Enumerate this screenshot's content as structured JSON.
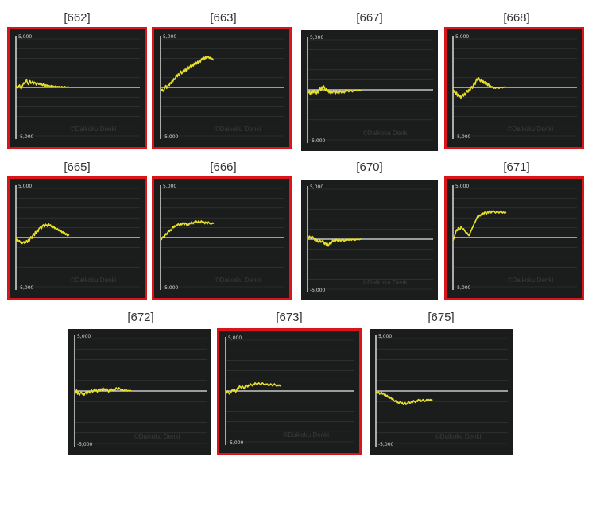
{
  "colors": {
    "highlight": "#d9141b",
    "panel": "#1b1c1c",
    "series": "#e8e12a",
    "baseline": "#e8e8e8",
    "grid": "#3a3b3b"
  },
  "y_top_label": "5,000",
  "y_bottom_label": "-5,000",
  "watermark": "©Daikoku Denki",
  "chart_data": [
    {
      "type": "line",
      "title": "[662]",
      "highlighted": true,
      "ylim": [
        -5000,
        5000
      ],
      "x": [
        0,
        5,
        10,
        15,
        20,
        25,
        30,
        35,
        40,
        45,
        50,
        55,
        60,
        65,
        70,
        75,
        80,
        85,
        90,
        95,
        100,
        105,
        110,
        115,
        120,
        125,
        130,
        135,
        140,
        145,
        150,
        155,
        160,
        165,
        170,
        175,
        180,
        185,
        190,
        195,
        200,
        205,
        210,
        215,
        220,
        225,
        230,
        235,
        240,
        245,
        250,
        255,
        260,
        265,
        270,
        275,
        280,
        285,
        290,
        295,
        300
      ],
      "values": [
        50,
        150,
        -50,
        100,
        250,
        0,
        -150,
        100,
        300,
        500,
        350,
        600,
        800,
        450,
        300,
        550,
        700,
        400,
        500,
        650,
        350,
        550,
        450,
        250,
        500,
        400,
        300,
        450,
        250,
        350,
        200,
        350,
        150,
        300,
        150,
        250,
        100,
        200,
        150,
        100,
        200,
        100,
        150,
        50,
        100,
        150,
        50,
        100,
        50,
        100,
        0,
        50,
        100,
        0,
        50,
        100,
        50,
        0,
        50,
        0,
        50
      ]
    },
    {
      "type": "line",
      "title": "[663]",
      "highlighted": true,
      "ylim": [
        -5000,
        5000
      ],
      "x": [
        0,
        5,
        10,
        15,
        20,
        25,
        30,
        35,
        40,
        45,
        50,
        55,
        60,
        65,
        70,
        75,
        80,
        85,
        90,
        95,
        100,
        105,
        110,
        115,
        120,
        125,
        130,
        135,
        140,
        145,
        150,
        155,
        160,
        165,
        170,
        175,
        180,
        185,
        190,
        195,
        200,
        205,
        210,
        215,
        220,
        225,
        230,
        235,
        240,
        245,
        250,
        255,
        260,
        265,
        270,
        275,
        280,
        285,
        290,
        295,
        300
      ],
      "values": [
        -100,
        -300,
        -200,
        -400,
        -250,
        0,
        200,
        -100,
        100,
        300,
        200,
        500,
        400,
        700,
        600,
        900,
        800,
        1000,
        1300,
        1100,
        1400,
        1200,
        1500,
        1700,
        1400,
        1600,
        1800,
        1600,
        1900,
        1700,
        2000,
        2200,
        1900,
        2100,
        2300,
        2100,
        2400,
        2200,
        2500,
        2300,
        2600,
        2400,
        2700,
        2500,
        2800,
        2600,
        2900,
        3000,
        2800,
        3100,
        2900,
        3200,
        3000,
        3100,
        3200,
        3000,
        3100,
        2900,
        3000,
        2900,
        2800
      ]
    },
    {
      "type": "line",
      "title": "[667]",
      "highlighted": false,
      "ylim": [
        -5000,
        5000
      ],
      "x": [
        0,
        5,
        10,
        15,
        20,
        25,
        30,
        35,
        40,
        45,
        50,
        55,
        60,
        65,
        70,
        75,
        80,
        85,
        90,
        95,
        100,
        105,
        110,
        115,
        120,
        125,
        130,
        135,
        140,
        145,
        150,
        155,
        160,
        165,
        170,
        175,
        180,
        185,
        190,
        195,
        200,
        205,
        210,
        215,
        220,
        225,
        230,
        235,
        240,
        245,
        250,
        255,
        260,
        265,
        270,
        275,
        280,
        285,
        290,
        295,
        300
      ],
      "values": [
        0,
        -300,
        -100,
        -500,
        -200,
        -400,
        -100,
        -300,
        0,
        -200,
        -400,
        -100,
        -300,
        100,
        200,
        -100,
        300,
        100,
        400,
        200,
        -100,
        100,
        -200,
        0,
        -300,
        -100,
        -400,
        -200,
        -300,
        -100,
        -200,
        -400,
        -100,
        -300,
        -200,
        -400,
        -100,
        -200,
        -300,
        -100,
        -200,
        -300,
        -100,
        -200,
        0,
        -100,
        -200,
        -100,
        0,
        -100,
        -200,
        -100,
        0,
        -100,
        0,
        -50,
        0,
        -100,
        0,
        -50,
        0
      ]
    },
    {
      "type": "line",
      "title": "[668]",
      "highlighted": true,
      "ylim": [
        -5000,
        5000
      ],
      "x": [
        0,
        5,
        10,
        15,
        20,
        25,
        30,
        35,
        40,
        45,
        50,
        55,
        60,
        65,
        70,
        75,
        80,
        85,
        90,
        95,
        100,
        105,
        110,
        115,
        120,
        125,
        130,
        135,
        140,
        145,
        150,
        155,
        160,
        165,
        170,
        175,
        180,
        185,
        190,
        195,
        200,
        205,
        210,
        215,
        220,
        225,
        230,
        235,
        240,
        245,
        250,
        255,
        260,
        265,
        270,
        275,
        280,
        285,
        290,
        295,
        300
      ],
      "values": [
        -200,
        -500,
        -300,
        -700,
        -500,
        -900,
        -700,
        -1000,
        -800,
        -1100,
        -900,
        -700,
        -900,
        -600,
        -800,
        -500,
        -300,
        -500,
        -200,
        -400,
        -100,
        100,
        -100,
        200,
        500,
        300,
        700,
        900,
        700,
        1000,
        800,
        600,
        800,
        500,
        700,
        400,
        600,
        300,
        500,
        200,
        400,
        100,
        200,
        0,
        100,
        0,
        -100,
        0,
        -100,
        0,
        -50,
        0,
        -100,
        0,
        50,
        0,
        -50,
        0,
        50,
        0,
        0
      ]
    },
    {
      "type": "line",
      "title": "[665]",
      "highlighted": true,
      "ylim": [
        -5000,
        5000
      ],
      "x": [
        0,
        5,
        10,
        15,
        20,
        25,
        30,
        35,
        40,
        45,
        50,
        55,
        60,
        65,
        70,
        75,
        80,
        85,
        90,
        95,
        100,
        105,
        110,
        115,
        120,
        125,
        130,
        135,
        140,
        145,
        150,
        155,
        160,
        165,
        170,
        175,
        180,
        185,
        190,
        195,
        200,
        205,
        210,
        215,
        220,
        225,
        230,
        235,
        240,
        245,
        250,
        255,
        260,
        265,
        270,
        275,
        280,
        285,
        290,
        295,
        300
      ],
      "values": [
        -100,
        -300,
        -200,
        -400,
        -300,
        -500,
        -400,
        -600,
        -500,
        -400,
        -600,
        -500,
        -300,
        -500,
        -200,
        -400,
        -100,
        100,
        -100,
        200,
        400,
        200,
        600,
        400,
        800,
        600,
        900,
        1000,
        1100,
        900,
        1200,
        1300,
        1100,
        1400,
        1200,
        1300,
        1100,
        1400,
        1200,
        1300,
        1100,
        1200,
        1000,
        1100,
        900,
        1000,
        800,
        900,
        700,
        800,
        600,
        700,
        500,
        600,
        400,
        500,
        300,
        400,
        200,
        300,
        200
      ]
    },
    {
      "type": "line",
      "title": "[666]",
      "highlighted": true,
      "ylim": [
        -5000,
        5000
      ],
      "x": [
        0,
        5,
        10,
        15,
        20,
        25,
        30,
        35,
        40,
        45,
        50,
        55,
        60,
        65,
        70,
        75,
        80,
        85,
        90,
        95,
        100,
        105,
        110,
        115,
        120,
        125,
        130,
        135,
        140,
        145,
        150,
        155,
        160,
        165,
        170,
        175,
        180,
        185,
        190,
        195,
        200,
        205,
        210,
        215,
        220,
        225,
        230,
        235,
        240,
        245,
        250,
        255,
        260,
        265,
        270,
        275,
        280,
        285,
        290,
        295,
        300
      ],
      "values": [
        -100,
        -200,
        0,
        100,
        -50,
        200,
        400,
        300,
        500,
        700,
        600,
        800,
        700,
        900,
        1100,
        1000,
        1200,
        1100,
        1300,
        1200,
        1400,
        1300,
        1200,
        1400,
        1300,
        1500,
        1400,
        1300,
        1500,
        1400,
        1200,
        1400,
        1300,
        1500,
        1400,
        1600,
        1500,
        1400,
        1600,
        1500,
        1700,
        1600,
        1500,
        1700,
        1600,
        1500,
        1700,
        1600,
        1500,
        1600,
        1400,
        1600,
        1500,
        1400,
        1600,
        1500,
        1400,
        1500,
        1400,
        1500,
        1400
      ]
    },
    {
      "type": "line",
      "title": "[670]",
      "highlighted": false,
      "ylim": [
        -5000,
        5000
      ],
      "x": [
        0,
        5,
        10,
        15,
        20,
        25,
        30,
        35,
        40,
        45,
        50,
        55,
        60,
        65,
        70,
        75,
        80,
        85,
        90,
        95,
        100,
        105,
        110,
        115,
        120,
        125,
        130,
        135,
        140,
        145,
        150,
        155,
        160,
        165,
        170,
        175,
        180,
        185,
        190,
        195,
        200,
        205,
        210,
        215,
        220,
        225,
        230,
        235,
        240,
        245,
        250,
        255,
        260,
        265,
        270,
        275,
        280,
        285,
        290,
        295,
        300
      ],
      "values": [
        -100,
        100,
        300,
        200,
        100,
        300,
        200,
        100,
        -100,
        100,
        -200,
        -100,
        -300,
        -200,
        -100,
        -300,
        -200,
        -100,
        -300,
        -500,
        -300,
        -600,
        -400,
        -700,
        -500,
        -300,
        -500,
        -300,
        -100,
        -200,
        -100,
        -200,
        0,
        -100,
        -200,
        0,
        -100,
        -200,
        -100,
        0,
        -100,
        -200,
        -100,
        0,
        -100,
        0,
        -100,
        -50,
        0,
        -100,
        0,
        -50,
        0,
        -100,
        -50,
        0,
        -50,
        0,
        -50,
        0,
        0
      ]
    },
    {
      "type": "line",
      "title": "[671]",
      "highlighted": true,
      "ylim": [
        -5000,
        5000
      ],
      "x": [
        0,
        5,
        10,
        15,
        20,
        25,
        30,
        35,
        40,
        45,
        50,
        55,
        60,
        65,
        70,
        75,
        80,
        85,
        90,
        95,
        100,
        105,
        110,
        115,
        120,
        125,
        130,
        135,
        140,
        145,
        150,
        155,
        160,
        165,
        170,
        175,
        180,
        185,
        190,
        195,
        200,
        205,
        210,
        215,
        220,
        225,
        230,
        235,
        240,
        245,
        250,
        255,
        260,
        265,
        270,
        275,
        280,
        285,
        290,
        295,
        300
      ],
      "values": [
        -300,
        -100,
        200,
        500,
        800,
        700,
        1000,
        900,
        800,
        1100,
        1000,
        800,
        900,
        700,
        600,
        400,
        500,
        300,
        200,
        400,
        600,
        800,
        1000,
        1200,
        1400,
        1600,
        1800,
        2000,
        2200,
        2100,
        2300,
        2200,
        2400,
        2300,
        2500,
        2400,
        2600,
        2500,
        2400,
        2600,
        2500,
        2700,
        2600,
        2500,
        2700,
        2600,
        2700,
        2600,
        2500,
        2600,
        2700,
        2600,
        2500,
        2600,
        2700,
        2600,
        2500,
        2600,
        2500,
        2600,
        2500
      ]
    },
    {
      "type": "line",
      "title": "[672]",
      "highlighted": false,
      "ylim": [
        -5000,
        5000
      ],
      "x": [
        0,
        5,
        10,
        15,
        20,
        25,
        30,
        35,
        40,
        45,
        50,
        55,
        60,
        65,
        70,
        75,
        80,
        85,
        90,
        95,
        100,
        105,
        110,
        115,
        120,
        125,
        130,
        135,
        140,
        145,
        150,
        155,
        160,
        165,
        170,
        175,
        180,
        185,
        190,
        195,
        200,
        205,
        210,
        215,
        220,
        225,
        230,
        235,
        240,
        245,
        250,
        255,
        260,
        265,
        270,
        275,
        280,
        285,
        290,
        295,
        300
      ],
      "values": [
        0,
        -200,
        100,
        -300,
        -100,
        -400,
        -200,
        -100,
        -300,
        -200,
        -400,
        -200,
        -100,
        -300,
        -100,
        0,
        -200,
        -100,
        100,
        -100,
        0,
        200,
        0,
        100,
        -100,
        100,
        200,
        0,
        200,
        100,
        300,
        100,
        200,
        0,
        200,
        100,
        -100,
        100,
        0,
        200,
        100,
        0,
        200,
        100,
        300,
        200,
        100,
        300,
        200,
        100,
        200,
        100,
        0,
        100,
        0,
        100,
        0,
        50,
        0,
        50,
        0
      ]
    },
    {
      "type": "line",
      "title": "[673]",
      "highlighted": true,
      "ylim": [
        -5000,
        5000
      ],
      "x": [
        0,
        5,
        10,
        15,
        20,
        25,
        30,
        35,
        40,
        45,
        50,
        55,
        60,
        65,
        70,
        75,
        80,
        85,
        90,
        95,
        100,
        105,
        110,
        115,
        120,
        125,
        130,
        135,
        140,
        145,
        150,
        155,
        160,
        165,
        170,
        175,
        180,
        185,
        190,
        195,
        200,
        205,
        210,
        215,
        220,
        225,
        230,
        235,
        240,
        245,
        250,
        255,
        260,
        265,
        270,
        275,
        280,
        285,
        290,
        295,
        300
      ],
      "values": [
        -100,
        -200,
        0,
        -100,
        -300,
        -200,
        -100,
        100,
        0,
        200,
        100,
        -100,
        100,
        300,
        200,
        500,
        400,
        300,
        500,
        400,
        200,
        400,
        600,
        500,
        400,
        600,
        500,
        700,
        600,
        500,
        700,
        600,
        800,
        700,
        600,
        700,
        800,
        700,
        600,
        700,
        800,
        700,
        600,
        700,
        600,
        700,
        600,
        500,
        600,
        700,
        600,
        500,
        600,
        700,
        600,
        500,
        600,
        500,
        600,
        500,
        600
      ]
    },
    {
      "type": "line",
      "title": "[675]",
      "highlighted": false,
      "ylim": [
        -5000,
        5000
      ],
      "x": [
        0,
        5,
        10,
        15,
        20,
        25,
        30,
        35,
        40,
        45,
        50,
        55,
        60,
        65,
        70,
        75,
        80,
        85,
        90,
        95,
        100,
        105,
        110,
        115,
        120,
        125,
        130,
        135,
        140,
        145,
        150,
        155,
        160,
        165,
        170,
        175,
        180,
        185,
        190,
        195,
        200,
        205,
        210,
        215,
        220,
        225,
        230,
        235,
        240,
        245,
        250,
        255,
        260,
        265,
        270,
        275,
        280,
        285,
        290,
        295,
        300
      ],
      "values": [
        0,
        -100,
        -200,
        -100,
        -300,
        -200,
        -100,
        -300,
        -200,
        -400,
        -300,
        -500,
        -400,
        -600,
        -500,
        -700,
        -600,
        -800,
        -700,
        -900,
        -1000,
        -900,
        -1100,
        -1000,
        -1200,
        -1100,
        -1000,
        -1200,
        -1100,
        -1300,
        -1200,
        -1100,
        -1300,
        -1200,
        -1100,
        -1000,
        -1200,
        -1100,
        -1000,
        -1100,
        -900,
        -1000,
        -1100,
        -900,
        -1000,
        -800,
        -900,
        -800,
        -1000,
        -900,
        -800,
        -900,
        -1000,
        -900,
        -800,
        -900,
        -800,
        -900,
        -800,
        -900,
        -800
      ]
    }
  ]
}
